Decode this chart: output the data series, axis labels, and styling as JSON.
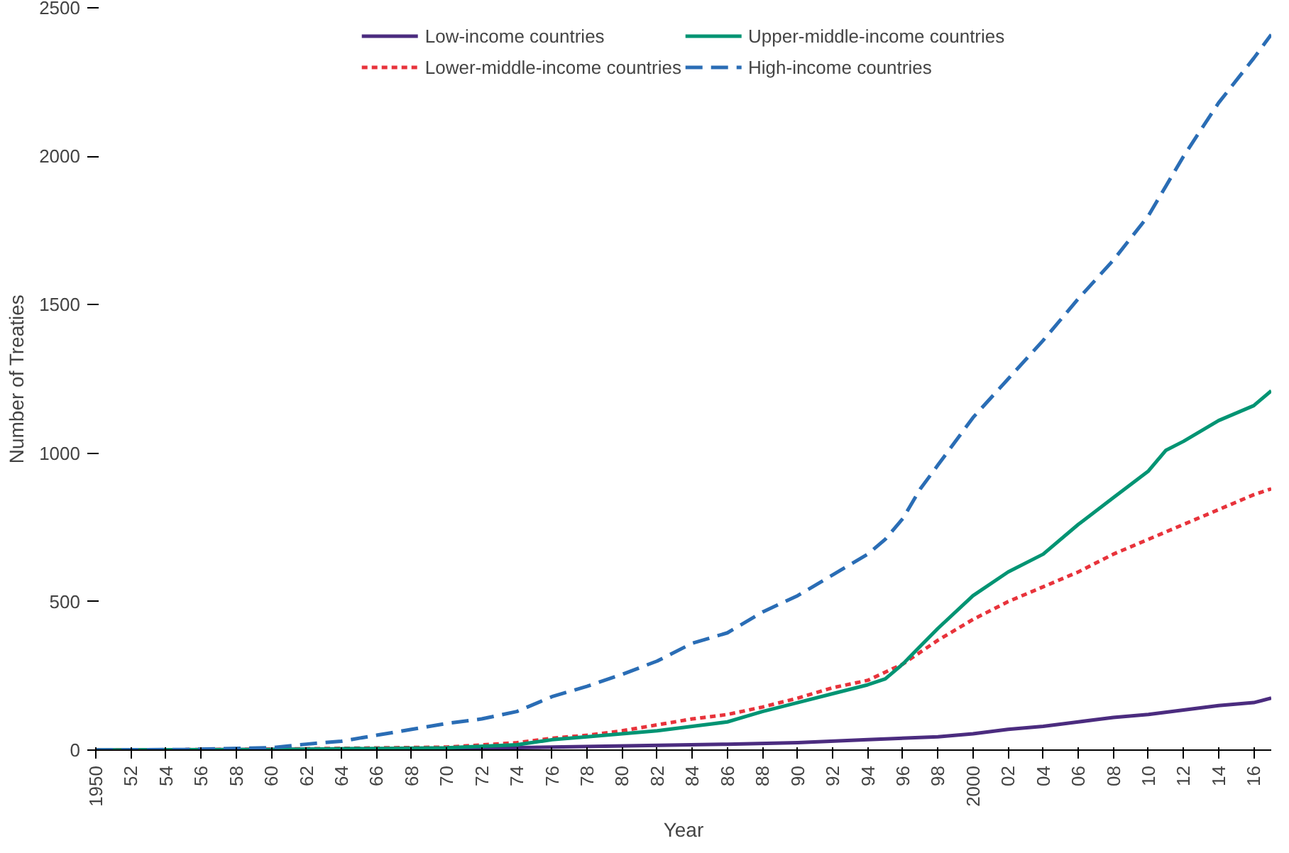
{
  "chart_data": {
    "type": "line",
    "xlabel": "Year",
    "ylabel": "Number of Treaties",
    "xlim": [
      1950,
      2017
    ],
    "ylim": [
      0,
      2500
    ],
    "xticks": [
      {
        "value": 1950,
        "label": "1950"
      },
      {
        "value": 1952,
        "label": "52"
      },
      {
        "value": 1954,
        "label": "54"
      },
      {
        "value": 1956,
        "label": "56"
      },
      {
        "value": 1958,
        "label": "58"
      },
      {
        "value": 1960,
        "label": "60"
      },
      {
        "value": 1962,
        "label": "62"
      },
      {
        "value": 1964,
        "label": "64"
      },
      {
        "value": 1966,
        "label": "66"
      },
      {
        "value": 1968,
        "label": "68"
      },
      {
        "value": 1970,
        "label": "70"
      },
      {
        "value": 1972,
        "label": "72"
      },
      {
        "value": 1974,
        "label": "74"
      },
      {
        "value": 1976,
        "label": "76"
      },
      {
        "value": 1978,
        "label": "78"
      },
      {
        "value": 1980,
        "label": "80"
      },
      {
        "value": 1982,
        "label": "82"
      },
      {
        "value": 1984,
        "label": "84"
      },
      {
        "value": 1986,
        "label": "86"
      },
      {
        "value": 1988,
        "label": "88"
      },
      {
        "value": 1990,
        "label": "90"
      },
      {
        "value": 1992,
        "label": "92"
      },
      {
        "value": 1994,
        "label": "94"
      },
      {
        "value": 1996,
        "label": "96"
      },
      {
        "value": 1998,
        "label": "98"
      },
      {
        "value": 2000,
        "label": "2000"
      },
      {
        "value": 2002,
        "label": "02"
      },
      {
        "value": 2004,
        "label": "04"
      },
      {
        "value": 2006,
        "label": "06"
      },
      {
        "value": 2008,
        "label": "08"
      },
      {
        "value": 2010,
        "label": "10"
      },
      {
        "value": 2012,
        "label": "12"
      },
      {
        "value": 2014,
        "label": "14"
      },
      {
        "value": 2016,
        "label": "16"
      }
    ],
    "yticks": [
      0,
      500,
      1000,
      1500,
      2000,
      2500
    ],
    "grid": false,
    "legend": "top",
    "marker": "none",
    "series": [
      {
        "name": "Low-income countries",
        "color": "#4b2c7f",
        "line_style": "solid",
        "x": [
          1950,
          1970,
          1976,
          1986,
          1990,
          1994,
          1998,
          2000,
          2002,
          2004,
          2006,
          2008,
          2010,
          2012,
          2014,
          2016,
          2017
        ],
        "values": [
          0,
          5,
          10,
          20,
          25,
          35,
          45,
          55,
          70,
          80,
          95,
          110,
          120,
          135,
          150,
          160,
          175
        ]
      },
      {
        "name": "Lower-middle-income countries",
        "color": "#e8333b",
        "line_style": "dotted",
        "x": [
          1950,
          1960,
          1970,
          1974,
          1976,
          1978,
          1980,
          1982,
          1984,
          1986,
          1988,
          1990,
          1992,
          1994,
          1996,
          1998,
          2000,
          2002,
          2004,
          2006,
          2008,
          2010,
          2012,
          2014,
          2016,
          2017
        ],
        "values": [
          0,
          3,
          10,
          25,
          40,
          50,
          65,
          85,
          105,
          120,
          145,
          175,
          210,
          235,
          290,
          370,
          440,
          500,
          550,
          600,
          660,
          710,
          760,
          810,
          860,
          880
        ]
      },
      {
        "name": "Upper-middle-income countries",
        "color": "#009473",
        "line_style": "solid",
        "x": [
          1950,
          1960,
          1970,
          1974,
          1976,
          1978,
          1980,
          1982,
          1984,
          1986,
          1988,
          1990,
          1992,
          1994,
          1995,
          1996,
          1997,
          1998,
          2000,
          2002,
          2004,
          2006,
          2008,
          2010,
          2011,
          2012,
          2014,
          2016,
          2017
        ],
        "values": [
          0,
          2,
          8,
          18,
          35,
          45,
          55,
          65,
          80,
          95,
          130,
          160,
          190,
          220,
          240,
          290,
          350,
          410,
          520,
          600,
          660,
          760,
          850,
          940,
          1010,
          1040,
          1110,
          1160,
          1210
        ]
      },
      {
        "name": "High-income countries",
        "color": "#2a6db5",
        "line_style": "dashed",
        "x": [
          1950,
          1955,
          1960,
          1962,
          1964,
          1966,
          1968,
          1970,
          1972,
          1974,
          1976,
          1978,
          1980,
          1982,
          1984,
          1986,
          1988,
          1990,
          1992,
          1994,
          1995,
          1996,
          1997,
          1998,
          2000,
          2002,
          2004,
          2006,
          2008,
          2010,
          2012,
          2014,
          2016,
          2017
        ],
        "values": [
          0,
          2,
          8,
          20,
          30,
          50,
          70,
          90,
          105,
          130,
          180,
          215,
          255,
          300,
          360,
          395,
          465,
          520,
          590,
          660,
          710,
          780,
          880,
          960,
          1120,
          1250,
          1380,
          1520,
          1650,
          1800,
          2000,
          2180,
          2330,
          2410
        ]
      }
    ]
  }
}
